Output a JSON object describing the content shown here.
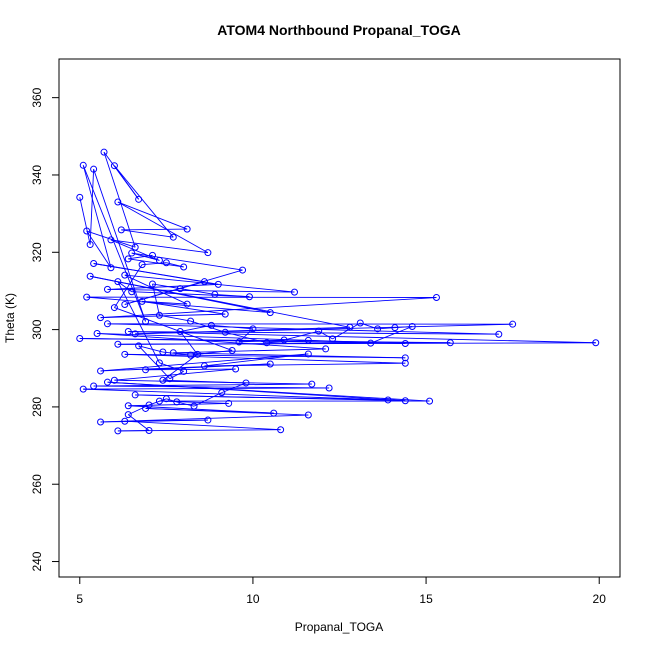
{
  "chart_data": {
    "type": "line",
    "title": "ATOM4 Northbound Propanal_TOGA",
    "xlabel": "Propanal_TOGA",
    "ylabel": "Theta (K)",
    "xlim": [
      4.4,
      20.6
    ],
    "ylim": [
      236,
      370
    ],
    "x_ticks": [
      5,
      10,
      15,
      20
    ],
    "y_ticks": [
      240,
      260,
      280,
      300,
      320,
      340,
      360
    ],
    "series_color": "#0000ff",
    "markers": "open-circle",
    "points": [
      [
        5.0,
        334.2
      ],
      [
        5.3,
        322.0
      ],
      [
        5.4,
        341.5
      ],
      [
        6.9,
        302.1
      ],
      [
        5.1,
        342.5
      ],
      [
        5.9,
        316.0
      ],
      [
        5.2,
        325.5
      ],
      [
        6.6,
        321.3
      ],
      [
        5.7,
        345.9
      ],
      [
        6.7,
        333.7
      ],
      [
        6.0,
        342.4
      ],
      [
        7.7,
        323.9
      ],
      [
        6.2,
        325.8
      ],
      [
        8.1,
        326.0
      ],
      [
        6.1,
        333.0
      ],
      [
        8.7,
        319.9
      ],
      [
        5.9,
        323.2
      ],
      [
        7.3,
        317.9
      ],
      [
        6.5,
        319.8
      ],
      [
        9.7,
        315.4
      ],
      [
        6.3,
        306.5
      ],
      [
        8.6,
        312.4
      ],
      [
        5.4,
        317.1
      ],
      [
        9.0,
        311.7
      ],
      [
        5.8,
        310.4
      ],
      [
        11.2,
        309.7
      ],
      [
        6.3,
        314.1
      ],
      [
        8.1,
        306.6
      ],
      [
        6.8,
        307.3
      ],
      [
        9.2,
        304.0
      ],
      [
        5.6,
        303.1
      ],
      [
        15.3,
        308.3
      ],
      [
        5.2,
        308.4
      ],
      [
        10.5,
        304.4
      ],
      [
        5.3,
        313.8
      ],
      [
        12.8,
        300.6
      ],
      [
        6.6,
        298.9
      ],
      [
        17.5,
        301.4
      ],
      [
        5.8,
        301.5
      ],
      [
        17.1,
        298.8
      ],
      [
        6.4,
        299.5
      ],
      [
        19.9,
        296.6
      ],
      [
        6.1,
        296.2
      ],
      [
        15.7,
        296.6
      ],
      [
        5.0,
        297.7
      ],
      [
        14.4,
        296.4
      ],
      [
        5.5,
        299.0
      ],
      [
        12.1,
        295.0
      ],
      [
        7.7,
        294.0
      ],
      [
        14.4,
        292.7
      ],
      [
        6.3,
        293.6
      ],
      [
        14.4,
        291.3
      ],
      [
        8.6,
        290.6
      ],
      [
        11.6,
        293.7
      ],
      [
        5.6,
        289.3
      ],
      [
        10.5,
        291.1
      ],
      [
        6.9,
        289.6
      ],
      [
        9.5,
        289.8
      ],
      [
        6.0,
        286.9
      ],
      [
        11.7,
        285.9
      ],
      [
        5.4,
        285.4
      ],
      [
        12.2,
        284.9
      ],
      [
        5.1,
        284.6
      ],
      [
        13.9,
        281.8
      ],
      [
        6.6,
        283.1
      ],
      [
        14.4,
        281.6
      ],
      [
        5.8,
        286.4
      ],
      [
        15.1,
        281.5
      ],
      [
        7.3,
        281.5
      ],
      [
        9.3,
        280.9
      ],
      [
        6.4,
        280.3
      ],
      [
        10.6,
        278.4
      ],
      [
        6.9,
        279.6
      ],
      [
        11.6,
        277.9
      ],
      [
        5.6,
        276.1
      ],
      [
        8.7,
        276.6
      ],
      [
        6.3,
        276.3
      ],
      [
        10.8,
        274.1
      ],
      [
        6.1,
        273.8
      ],
      [
        7.0,
        273.9
      ],
      [
        6.4,
        278.0
      ],
      [
        7.0,
        280.5
      ],
      [
        7.5,
        282.1
      ],
      [
        7.8,
        281.3
      ],
      [
        8.3,
        280.2
      ],
      [
        9.1,
        283.7
      ],
      [
        9.8,
        286.2
      ],
      [
        7.4,
        286.9
      ],
      [
        8.4,
        293.6
      ],
      [
        7.9,
        299.5
      ],
      [
        8.8,
        301.1
      ],
      [
        10.0,
        300.2
      ],
      [
        9.6,
        296.8
      ],
      [
        10.9,
        297.3
      ],
      [
        11.9,
        299.6
      ],
      [
        12.3,
        297.6
      ],
      [
        13.1,
        301.7
      ],
      [
        13.6,
        300.2
      ],
      [
        14.1,
        300.5
      ],
      [
        14.6,
        300.8
      ],
      [
        13.4,
        296.5
      ],
      [
        11.6,
        297.2
      ],
      [
        10.4,
        296.6
      ],
      [
        9.2,
        299.3
      ],
      [
        8.2,
        302.2
      ],
      [
        7.3,
        303.7
      ],
      [
        7.1,
        311.8
      ],
      [
        7.9,
        310.6
      ],
      [
        8.9,
        309.1
      ],
      [
        9.9,
        308.5
      ],
      [
        6.5,
        309.8
      ],
      [
        6.1,
        312.4
      ],
      [
        7.3,
        291.4
      ],
      [
        8.0,
        289.2
      ],
      [
        7.6,
        287.3
      ],
      [
        6.7,
        295.8
      ],
      [
        7.4,
        294.2
      ],
      [
        8.2,
        293.4
      ],
      [
        9.4,
        294.6
      ],
      [
        6.0,
        305.7
      ],
      [
        6.8,
        316.8
      ],
      [
        7.5,
        317.3
      ],
      [
        8.0,
        316.2
      ],
      [
        6.4,
        318.3
      ],
      [
        7.1,
        319.2
      ]
    ]
  }
}
